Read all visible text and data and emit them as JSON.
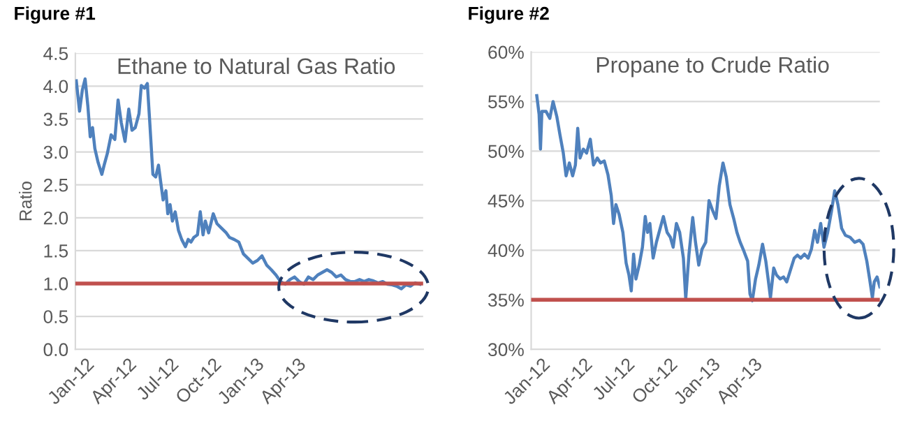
{
  "chart_data": [
    {
      "type": "line",
      "title": "Figure #1",
      "subtitle": "Ethane to Natural Gas Ratio",
      "ylabel": "Ratio",
      "xlim": [
        "2011-12-10",
        "2013-12-28"
      ],
      "xticks": [
        {
          "value": "2012-01-01",
          "label": "Jan-12"
        },
        {
          "value": "2012-04-01",
          "label": "Apr-12"
        },
        {
          "value": "2012-07-01",
          "label": "Jul-12"
        },
        {
          "value": "2012-10-01",
          "label": "Oct-12"
        },
        {
          "value": "2013-01-01",
          "label": "Jan-13"
        },
        {
          "value": "2013-04-01",
          "label": "Apr-13"
        }
      ],
      "ylim": [
        0,
        4.5
      ],
      "yticks": [
        {
          "value": 0,
          "label": "0.0"
        },
        {
          "value": 0.5,
          "label": "0.5"
        },
        {
          "value": 1,
          "label": "1.0"
        },
        {
          "value": 1.5,
          "label": "1.5"
        },
        {
          "value": 2,
          "label": "2.0"
        },
        {
          "value": 2.5,
          "label": "2.5"
        },
        {
          "value": 3,
          "label": "3.0"
        },
        {
          "value": 3.5,
          "label": "3.5"
        },
        {
          "value": 4,
          "label": "4.0"
        },
        {
          "value": 4.5,
          "label": "4.5"
        }
      ],
      "grid": "y",
      "marker": "none",
      "line_style": "solid",
      "ref_lines": [
        {
          "axis": "y",
          "value": 1.0,
          "label": null,
          "color": "#c0504d"
        }
      ],
      "series": [
        {
          "color": "#4f81bd",
          "x": [
            "2011-12-12",
            "2011-12-19",
            "2011-12-25",
            "2011-12-31",
            "2012-01-06",
            "2012-01-11",
            "2012-01-16",
            "2012-01-21",
            "2012-01-28",
            "2012-02-05",
            "2012-02-10",
            "2012-02-17",
            "2012-02-25",
            "2012-03-04",
            "2012-03-11",
            "2012-03-18",
            "2012-03-26",
            "2012-04-03",
            "2012-04-10",
            "2012-04-17",
            "2012-04-25",
            "2012-04-30",
            "2012-05-07",
            "2012-05-13",
            "2012-05-18",
            "2012-05-25",
            "2012-05-31",
            "2012-06-06",
            "2012-06-12",
            "2012-06-16",
            "2012-06-22",
            "2012-06-26",
            "2012-07-01",
            "2012-07-06",
            "2012-07-12",
            "2012-07-19",
            "2012-07-26",
            "2012-08-03",
            "2012-08-09",
            "2012-08-15",
            "2012-08-21",
            "2012-08-29",
            "2012-09-04",
            "2012-09-10",
            "2012-09-15",
            "2012-09-22",
            "2012-10-02",
            "2012-10-10",
            "2012-10-20",
            "2012-10-30",
            "2012-11-06",
            "2012-11-16",
            "2012-11-26",
            "2012-12-06",
            "2012-12-16",
            "2012-12-26",
            "2013-01-05",
            "2013-01-15",
            "2013-01-25",
            "2013-02-04",
            "2013-02-14",
            "2013-02-24",
            "2013-03-06",
            "2013-03-16",
            "2013-03-26",
            "2013-04-05",
            "2013-04-15",
            "2013-04-25",
            "2013-05-05",
            "2013-05-15",
            "2013-05-25",
            "2013-06-04",
            "2013-06-14",
            "2013-06-24",
            "2013-07-04",
            "2013-07-14",
            "2013-07-24",
            "2013-08-03",
            "2013-08-13",
            "2013-08-23",
            "2013-09-02",
            "2013-09-12",
            "2013-09-22",
            "2013-10-02",
            "2013-10-12",
            "2013-10-22",
            "2013-11-01",
            "2013-11-11",
            "2013-11-21",
            "2013-12-01",
            "2013-12-11",
            "2013-12-21"
          ],
          "values": [
            4.08,
            3.62,
            3.94,
            4.11,
            3.69,
            3.23,
            3.37,
            3.05,
            2.84,
            2.66,
            2.8,
            2.98,
            3.26,
            3.19,
            3.79,
            3.44,
            3.16,
            3.65,
            3.33,
            3.37,
            3.58,
            4.01,
            3.97,
            4.04,
            3.48,
            2.66,
            2.62,
            2.8,
            2.48,
            2.27,
            2.41,
            2.06,
            2.2,
            1.95,
            2.09,
            1.81,
            1.67,
            1.56,
            1.67,
            1.63,
            1.7,
            1.74,
            2.09,
            1.74,
            1.95,
            1.77,
            2.06,
            1.91,
            1.84,
            1.77,
            1.7,
            1.67,
            1.63,
            1.45,
            1.38,
            1.31,
            1.35,
            1.42,
            1.28,
            1.21,
            1.13,
            1.03,
            0.99,
            1.06,
            1.1,
            1.03,
            0.99,
            1.1,
            1.06,
            1.13,
            1.17,
            1.21,
            1.17,
            1.1,
            1.13,
            1.06,
            1.03,
            1.03,
            1.06,
            1.03,
            1.06,
            1.04,
            1.01,
            1.03,
            0.99,
            0.98,
            0.96,
            0.92,
            0.98,
            0.96,
            1.01,
            0.99
          ]
        }
      ]
    },
    {
      "type": "line",
      "title": "Figure #2",
      "subtitle": "Propane to Crude Ratio",
      "xlim": [
        "2011-12-10",
        "2013-12-28"
      ],
      "xticks": [
        {
          "value": "2012-01-01",
          "label": "Jan-12"
        },
        {
          "value": "2012-04-01",
          "label": "Apr-12"
        },
        {
          "value": "2012-07-01",
          "label": "Jul-12"
        },
        {
          "value": "2012-10-01",
          "label": "Oct-12"
        },
        {
          "value": "2013-01-01",
          "label": "Jan-13"
        },
        {
          "value": "2013-04-01",
          "label": "Apr-13"
        }
      ],
      "ylim": [
        30,
        60
      ],
      "yticks": [
        {
          "value": 30,
          "label": "30%"
        },
        {
          "value": 35,
          "label": "35%"
        },
        {
          "value": 40,
          "label": "40%"
        },
        {
          "value": 45,
          "label": "45%"
        },
        {
          "value": 50,
          "label": "50%"
        },
        {
          "value": 55,
          "label": "55%"
        },
        {
          "value": 60,
          "label": "60%"
        }
      ],
      "grid": "y",
      "marker": "none",
      "line_style": "solid",
      "ref_lines": [
        {
          "axis": "y",
          "value": 35,
          "label": null,
          "color": "#c0504d"
        }
      ],
      "series": [
        {
          "color": "#4f81bd",
          "x": [
            "2011-12-22",
            "2011-12-27",
            "2011-12-30",
            "2012-01-02",
            "2012-01-11",
            "2012-01-19",
            "2012-01-26",
            "2012-02-03",
            "2012-02-10",
            "2012-02-17",
            "2012-02-23",
            "2012-03-01",
            "2012-03-08",
            "2012-03-14",
            "2012-03-19",
            "2012-03-24",
            "2012-03-31",
            "2012-04-07",
            "2012-04-15",
            "2012-04-22",
            "2012-04-30",
            "2012-05-07",
            "2012-05-15",
            "2012-05-23",
            "2012-05-30",
            "2012-06-04",
            "2012-06-09",
            "2012-06-16",
            "2012-06-24",
            "2012-07-01",
            "2012-07-07",
            "2012-07-12",
            "2012-07-17",
            "2012-07-22",
            "2012-07-29",
            "2012-08-05",
            "2012-08-11",
            "2012-08-16",
            "2012-08-21",
            "2012-08-28",
            "2012-09-04",
            "2012-09-12",
            "2012-09-19",
            "2012-09-27",
            "2012-10-04",
            "2012-10-10",
            "2012-10-17",
            "2012-10-24",
            "2012-11-01",
            "2012-11-06",
            "2012-11-13",
            "2012-11-21",
            "2012-11-27",
            "2012-12-04",
            "2012-12-11",
            "2012-12-19",
            "2012-12-26",
            "2013-01-02",
            "2013-01-10",
            "2013-01-17",
            "2013-01-25",
            "2013-02-01",
            "2013-02-09",
            "2013-02-17",
            "2013-02-24",
            "2013-03-03",
            "2013-03-11",
            "2013-03-19",
            "2013-03-24",
            "2013-03-29",
            "2013-04-05",
            "2013-04-12",
            "2013-04-20",
            "2013-04-27",
            "2013-05-02",
            "2013-05-07",
            "2013-05-14",
            "2013-05-20",
            "2013-05-28",
            "2013-06-04",
            "2013-06-11",
            "2013-06-19",
            "2013-06-27",
            "2013-07-04",
            "2013-07-11",
            "2013-07-19",
            "2013-07-27",
            "2013-08-03",
            "2013-08-10",
            "2013-08-16",
            "2013-08-23",
            "2013-08-30",
            "2013-09-07",
            "2013-09-15",
            "2013-09-22",
            "2013-09-29",
            "2013-10-07",
            "2013-10-15",
            "2013-10-25",
            "2013-11-04",
            "2013-11-14",
            "2013-11-22",
            "2013-11-30",
            "2013-12-06",
            "2013-12-12",
            "2013-12-16",
            "2013-12-22",
            "2013-12-28"
          ],
          "values": [
            55.6,
            53.7,
            50.2,
            54.0,
            54.0,
            53.3,
            55.0,
            53.5,
            51.6,
            49.8,
            47.5,
            48.8,
            47.5,
            48.6,
            52.3,
            49.3,
            50.2,
            49.8,
            51.2,
            48.6,
            49.3,
            48.8,
            49.0,
            47.6,
            45.5,
            42.7,
            44.6,
            43.6,
            41.8,
            38.7,
            37.5,
            35.9,
            39.6,
            37.1,
            38.5,
            40.3,
            43.4,
            41.8,
            42.7,
            39.2,
            40.8,
            42.2,
            43.4,
            41.8,
            41.3,
            40.3,
            42.7,
            41.8,
            39.2,
            35.1,
            39.6,
            43.3,
            40.8,
            38.5,
            40.1,
            40.8,
            45.0,
            44.1,
            43.2,
            46.5,
            48.8,
            47.4,
            44.6,
            43.2,
            41.8,
            40.8,
            39.9,
            38.9,
            35.6,
            34.9,
            37.1,
            38.5,
            40.6,
            38.9,
            37.1,
            35.2,
            38.2,
            37.5,
            37.1,
            37.3,
            36.8,
            38.0,
            39.2,
            39.5,
            39.2,
            39.6,
            39.2,
            40.1,
            42.0,
            40.8,
            42.7,
            40.3,
            41.8,
            43.9,
            46.0,
            44.6,
            42.2,
            41.5,
            41.3,
            40.8,
            41.0,
            40.6,
            38.9,
            37.1,
            35.2,
            36.8,
            37.3,
            36.3
          ]
        }
      ]
    }
  ]
}
